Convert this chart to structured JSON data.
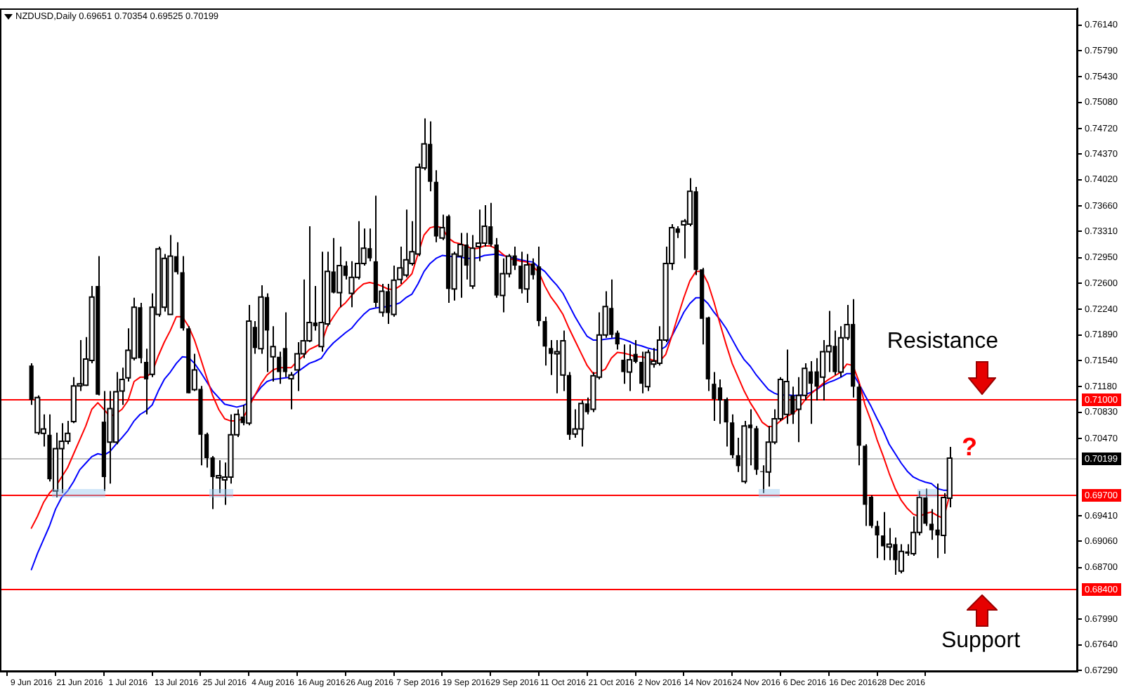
{
  "chart_data": {
    "type": "candlestick",
    "title": "NZDUSD,Daily 0.69651 0.70354 0.69525 0.70199",
    "categories": [
      "9 Jun 2016",
      null,
      null,
      null,
      null,
      null,
      null,
      null,
      "21 Jun 2016",
      null,
      null,
      null,
      null,
      null,
      null,
      null,
      "1 Jul 2016",
      null,
      null,
      null,
      null,
      null,
      null,
      null,
      "13 Jul 2016",
      null,
      null,
      null,
      null,
      null,
      null,
      null,
      "25 Jul 2016",
      null,
      null,
      null,
      null,
      null,
      null,
      null,
      "4 Aug 2016",
      null,
      null,
      null,
      null,
      null,
      null,
      null,
      "16 Aug 2016",
      null,
      null,
      null,
      null,
      null,
      null,
      null,
      "26 Aug 2016",
      null,
      null,
      null,
      null,
      null,
      null,
      null,
      "7 Sep 2016",
      null,
      null,
      null,
      null,
      null,
      null,
      null,
      "19 Sep 2016",
      null,
      null,
      null,
      null,
      null,
      null,
      null,
      "29 Sep 2016",
      null,
      null,
      null,
      null,
      null,
      null,
      null,
      "11 Oct 2016",
      null,
      null,
      null,
      null,
      null,
      null,
      null,
      "21 Oct 2016",
      null,
      null,
      null,
      null,
      null,
      null,
      null,
      "2 Nov 2016",
      null,
      null,
      null,
      null,
      null,
      null,
      null,
      "14 Nov 2016",
      null,
      null,
      null,
      null,
      null,
      null,
      null,
      "24 Nov 2016",
      null,
      null,
      null,
      null,
      null,
      null,
      null,
      "6 Dec 2016",
      null,
      null,
      null,
      null,
      null,
      null,
      null,
      "16 Dec 2016",
      null,
      null,
      null,
      null,
      null,
      null,
      null,
      "28 Dec 2016",
      null,
      null,
      null,
      null,
      null,
      null,
      null,
      null
    ],
    "ohlc": [
      [
        0.7147,
        0.715,
        0.7093,
        0.71
      ],
      [
        0.7055,
        0.7106,
        0.7052,
        0.7103
      ],
      [
        0.7054,
        0.708,
        0.7036,
        0.706
      ],
      [
        0.7052,
        0.708,
        0.6988,
        0.6991
      ],
      [
        0.6975,
        0.7055,
        0.6966,
        0.7033
      ],
      [
        0.7033,
        0.7068,
        0.6972,
        0.7043
      ],
      [
        0.7043,
        0.7071,
        0.7039,
        0.7054
      ],
      [
        0.707,
        0.7131,
        0.7068,
        0.7119
      ],
      [
        0.7119,
        0.7182,
        0.7112,
        0.7122
      ],
      [
        0.712,
        0.7186,
        0.7119,
        0.7156
      ],
      [
        0.7154,
        0.7256,
        0.715,
        0.7241
      ],
      [
        0.7256,
        0.7297,
        0.7106,
        0.7107
      ],
      [
        0.707,
        0.7112,
        0.6975,
        0.6994
      ],
      [
        0.7042,
        0.7112,
        0.6985,
        0.7088
      ],
      [
        0.7042,
        0.7138,
        0.7039,
        0.7111
      ],
      [
        0.7112,
        0.7144,
        0.7093,
        0.7128
      ],
      [
        0.713,
        0.7198,
        0.7125,
        0.7168
      ],
      [
        0.7157,
        0.724,
        0.7154,
        0.7227
      ],
      [
        0.7227,
        0.7233,
        0.715,
        0.7157
      ],
      [
        0.7152,
        0.717,
        0.708,
        0.7128
      ],
      [
        0.7135,
        0.7246,
        0.7131,
        0.7227
      ],
      [
        0.7217,
        0.731,
        0.7214,
        0.7307
      ],
      [
        0.7227,
        0.73,
        0.7221,
        0.7294
      ],
      [
        0.7217,
        0.7326,
        0.7217,
        0.7297
      ],
      [
        0.7297,
        0.7316,
        0.7272,
        0.7275
      ],
      [
        0.7275,
        0.7297,
        0.7195,
        0.7198
      ],
      [
        0.7198,
        0.7201,
        0.7109,
        0.7109
      ],
      [
        0.7114,
        0.7163,
        0.7112,
        0.7141
      ],
      [
        0.7115,
        0.7119,
        0.701,
        0.7052
      ],
      [
        0.7053,
        0.7055,
        0.7007,
        0.702
      ],
      [
        0.7021,
        0.7023,
        0.695,
        0.6994
      ],
      [
        0.6993,
        0.7017,
        0.6972,
        0.6996
      ],
      [
        0.699,
        0.7014,
        0.6956,
        0.6994
      ],
      [
        0.6994,
        0.708,
        0.6985,
        0.7052
      ],
      [
        0.7052,
        0.7087,
        0.7049,
        0.708
      ],
      [
        0.7077,
        0.7093,
        0.7065,
        0.7068
      ],
      [
        0.7068,
        0.723,
        0.7065,
        0.7208
      ],
      [
        0.72,
        0.7208,
        0.7163,
        0.7171
      ],
      [
        0.717,
        0.7257,
        0.7163,
        0.7241
      ],
      [
        0.7241,
        0.7246,
        0.7138,
        0.7195
      ],
      [
        0.7159,
        0.7201,
        0.7125,
        0.7173
      ],
      [
        0.7159,
        0.7166,
        0.7122,
        0.7138
      ],
      [
        0.7171,
        0.722,
        0.7131,
        0.7138
      ],
      [
        0.7129,
        0.7138,
        0.7087,
        0.7134
      ],
      [
        0.7141,
        0.7179,
        0.7112,
        0.7163
      ],
      [
        0.7163,
        0.7265,
        0.7157,
        0.7181
      ],
      [
        0.7181,
        0.7338,
        0.7179,
        0.7206
      ],
      [
        0.7206,
        0.7256,
        0.7195,
        0.7201
      ],
      [
        0.7173,
        0.7303,
        0.7166,
        0.7206
      ],
      [
        0.7204,
        0.7303,
        0.7201,
        0.7276
      ],
      [
        0.7276,
        0.7322,
        0.7246,
        0.7247
      ],
      [
        0.7247,
        0.731,
        0.7227,
        0.7284
      ],
      [
        0.7284,
        0.729,
        0.7265,
        0.727
      ],
      [
        0.7246,
        0.729,
        0.7227,
        0.7268
      ],
      [
        0.7268,
        0.7345,
        0.7265,
        0.7287
      ],
      [
        0.7287,
        0.7335,
        0.7284,
        0.7308
      ],
      [
        0.7308,
        0.7335,
        0.729,
        0.7294
      ],
      [
        0.729,
        0.738,
        0.7227,
        0.7233
      ],
      [
        0.722,
        0.7259,
        0.7214,
        0.7249
      ],
      [
        0.7249,
        0.7259,
        0.7204,
        0.7219
      ],
      [
        0.7217,
        0.7284,
        0.7214,
        0.7264
      ],
      [
        0.7265,
        0.731,
        0.7259,
        0.7281
      ],
      [
        0.7271,
        0.7361,
        0.7268,
        0.7292
      ],
      [
        0.7287,
        0.7345,
        0.7284,
        0.7303
      ],
      [
        0.73,
        0.7424,
        0.7297,
        0.7419
      ],
      [
        0.7418,
        0.7486,
        0.7415,
        0.7451
      ],
      [
        0.7451,
        0.7482,
        0.7386,
        0.7399
      ],
      [
        0.7399,
        0.7415,
        0.7316,
        0.7324
      ],
      [
        0.7322,
        0.7354,
        0.7319,
        0.7336
      ],
      [
        0.7352,
        0.7354,
        0.7233,
        0.7252
      ],
      [
        0.7252,
        0.7303,
        0.7236,
        0.73
      ],
      [
        0.7297,
        0.7329,
        0.724,
        0.7313
      ],
      [
        0.7313,
        0.7329,
        0.7265,
        0.7284
      ],
      [
        0.7256,
        0.7326,
        0.7252,
        0.7308
      ],
      [
        0.731,
        0.7361,
        0.729,
        0.7315
      ],
      [
        0.7315,
        0.7367,
        0.731,
        0.7338
      ],
      [
        0.7338,
        0.737,
        0.731,
        0.7313
      ],
      [
        0.7313,
        0.7322,
        0.724,
        0.7243
      ],
      [
        0.7243,
        0.7294,
        0.722,
        0.7273
      ],
      [
        0.7273,
        0.73,
        0.7268,
        0.7297
      ],
      [
        0.7298,
        0.731,
        0.7278,
        0.7284
      ],
      [
        0.7284,
        0.7303,
        0.7246,
        0.7252
      ],
      [
        0.7252,
        0.73,
        0.7233,
        0.7285
      ],
      [
        0.7287,
        0.7294,
        0.7265,
        0.7271
      ],
      [
        0.7283,
        0.731,
        0.7201,
        0.7208
      ],
      [
        0.7208,
        0.7214,
        0.7147,
        0.7173
      ],
      [
        0.7171,
        0.7182,
        0.7134,
        0.7163
      ],
      [
        0.7163,
        0.7182,
        0.7109,
        0.7166
      ],
      [
        0.7134,
        0.7195,
        0.7112,
        0.7181
      ],
      [
        0.7134,
        0.7138,
        0.7045,
        0.7052
      ],
      [
        0.7053,
        0.7087,
        0.7048,
        0.706
      ],
      [
        0.706,
        0.7099,
        0.7036,
        0.7095
      ],
      [
        0.7095,
        0.7103,
        0.708,
        0.7083
      ],
      [
        0.7087,
        0.7138,
        0.7083,
        0.7133
      ],
      [
        0.7131,
        0.722,
        0.7128,
        0.7189
      ],
      [
        0.7189,
        0.7249,
        0.7185,
        0.7228
      ],
      [
        0.7226,
        0.7265,
        0.7185,
        0.7189
      ],
      [
        0.7192,
        0.7195,
        0.7169,
        0.7176
      ],
      [
        0.7155,
        0.7176,
        0.7122,
        0.7138
      ],
      [
        0.7138,
        0.7176,
        0.7112,
        0.7155
      ],
      [
        0.7163,
        0.7182,
        0.715,
        0.7152
      ],
      [
        0.7152,
        0.7166,
        0.7109,
        0.7122
      ],
      [
        0.7118,
        0.7169,
        0.7112,
        0.7165
      ],
      [
        0.7149,
        0.7171,
        0.7144,
        0.7153
      ],
      [
        0.715,
        0.7201,
        0.7147,
        0.7182
      ],
      [
        0.7182,
        0.731,
        0.7179,
        0.7287
      ],
      [
        0.7287,
        0.7341,
        0.7278,
        0.7336
      ],
      [
        0.7335,
        0.7338,
        0.7322,
        0.7329
      ],
      [
        0.734,
        0.7348,
        0.7294,
        0.7345
      ],
      [
        0.7341,
        0.7404,
        0.7338,
        0.7386
      ],
      [
        0.7386,
        0.7392,
        0.7271,
        0.7278
      ],
      [
        0.7279,
        0.7281,
        0.7176,
        0.7211
      ],
      [
        0.7213,
        0.7214,
        0.7112,
        0.7128
      ],
      [
        0.7122,
        0.7138,
        0.7071,
        0.7101
      ],
      [
        0.7117,
        0.7128,
        0.7067,
        0.7099
      ],
      [
        0.7101,
        0.7103,
        0.7036,
        0.7069
      ],
      [
        0.7069,
        0.708,
        0.702,
        0.7024
      ],
      [
        0.7024,
        0.7048,
        0.7001,
        0.7009
      ],
      [
        0.6988,
        0.7071,
        0.6985,
        0.7064
      ],
      [
        0.7066,
        0.7087,
        0.701,
        0.7061
      ],
      [
        0.7061,
        0.7064,
        0.6997,
        0.7004
      ],
      [
        0.7002,
        0.701,
        0.6972,
        0.7001
      ],
      [
        0.7001,
        0.7064,
        0.6981,
        0.7042
      ],
      [
        0.7042,
        0.7087,
        0.7039,
        0.7074
      ],
      [
        0.7074,
        0.7131,
        0.7071,
        0.7128
      ],
      [
        0.708,
        0.7169,
        0.7067,
        0.7125
      ],
      [
        0.7106,
        0.7118,
        0.7067,
        0.708
      ],
      [
        0.7087,
        0.7131,
        0.7042,
        0.7106
      ],
      [
        0.7106,
        0.715,
        0.7099,
        0.7143
      ],
      [
        0.7139,
        0.7153,
        0.7067,
        0.7122
      ],
      [
        0.7139,
        0.7157,
        0.7099,
        0.7118
      ],
      [
        0.7131,
        0.7182,
        0.7099,
        0.7166
      ],
      [
        0.7166,
        0.7222,
        0.7138,
        0.7174
      ],
      [
        0.7174,
        0.7195,
        0.7134,
        0.7138
      ],
      [
        0.7138,
        0.7201,
        0.7131,
        0.7185
      ],
      [
        0.7185,
        0.723,
        0.7182,
        0.7203
      ],
      [
        0.7204,
        0.7238,
        0.7103,
        0.7118
      ],
      [
        0.7118,
        0.7122,
        0.701,
        0.7037
      ],
      [
        0.7037,
        0.7039,
        0.6927,
        0.6956
      ],
      [
        0.6967,
        0.6969,
        0.6924,
        0.6927
      ],
      [
        0.6927,
        0.6934,
        0.6883,
        0.6914
      ],
      [
        0.6914,
        0.6946,
        0.688,
        0.6899
      ],
      [
        0.6898,
        0.6924,
        0.688,
        0.6902
      ],
      [
        0.6902,
        0.6911,
        0.686,
        0.688
      ],
      [
        0.6865,
        0.6902,
        0.6862,
        0.6892
      ],
      [
        0.6892,
        0.6902,
        0.6886,
        0.6889
      ],
      [
        0.6889,
        0.694,
        0.6886,
        0.6918
      ],
      [
        0.6918,
        0.6975,
        0.6914,
        0.6966
      ],
      [
        0.6966,
        0.6978,
        0.6927,
        0.693
      ],
      [
        0.693,
        0.695,
        0.6908,
        0.6921
      ],
      [
        0.6922,
        0.6985,
        0.6883,
        0.6914
      ],
      [
        0.6914,
        0.6972,
        0.6889,
        0.6966
      ],
      [
        0.69651,
        0.70354,
        0.69525,
        0.70199
      ]
    ],
    "series": [
      {
        "type": "line",
        "color": "#ff0000",
        "values": [
          0.6924,
          0.694,
          0.6959,
          0.6972,
          0.6981,
          0.6994,
          0.7007,
          0.7026,
          0.7045,
          0.7064,
          0.7087,
          0.7096,
          0.7087,
          0.7077,
          0.7081,
          0.7087,
          0.7099,
          0.7125,
          0.7131,
          0.7131,
          0.7138,
          0.716,
          0.7179,
          0.7195,
          0.7214,
          0.7214,
          0.7201,
          0.7182,
          0.7157,
          0.7131,
          0.7106,
          0.7087,
          0.7074,
          0.7071,
          0.7071,
          0.7074,
          0.709,
          0.7106,
          0.7122,
          0.7134,
          0.7141,
          0.7144,
          0.7144,
          0.7144,
          0.7153,
          0.716,
          0.7169,
          0.7173,
          0.7177,
          0.7201,
          0.7214,
          0.7226,
          0.7233,
          0.7243,
          0.7252,
          0.7259,
          0.7261,
          0.7259,
          0.7256,
          0.7252,
          0.7251,
          0.7256,
          0.7264,
          0.7273,
          0.73,
          0.7326,
          0.7336,
          0.7338,
          0.7336,
          0.7322,
          0.7316,
          0.7314,
          0.7311,
          0.7307,
          0.7308,
          0.7311,
          0.7311,
          0.7307,
          0.73,
          0.7294,
          0.7292,
          0.729,
          0.7289,
          0.7283,
          0.7275,
          0.7256,
          0.7241,
          0.723,
          0.7217,
          0.7198,
          0.7181,
          0.7164,
          0.7147,
          0.7136,
          0.7138,
          0.7142,
          0.7157,
          0.7165,
          0.7164,
          0.7162,
          0.7159,
          0.7159,
          0.7157,
          0.7154,
          0.7153,
          0.7162,
          0.7187,
          0.7214,
          0.724,
          0.7263,
          0.7276,
          0.7276,
          0.726,
          0.7234,
          0.7204,
          0.7176,
          0.715,
          0.7131,
          0.7112,
          0.7096,
          0.7083,
          0.7069,
          0.7063,
          0.7064,
          0.7071,
          0.7077,
          0.7081,
          0.7088,
          0.7099,
          0.7108,
          0.7115,
          0.7122,
          0.7128,
          0.7133,
          0.7138,
          0.7149,
          0.7147,
          0.7125,
          0.7093,
          0.7071,
          0.7045,
          0.7023,
          0.6999,
          0.6978,
          0.6962,
          0.6951,
          0.6943,
          0.694,
          0.6944,
          0.6946,
          0.6941,
          0.6937,
          0.6969
        ]
      },
      {
        "type": "line",
        "color": "#0000ff",
        "values": [
          0.6867,
          0.6889,
          0.6908,
          0.6927,
          0.695,
          0.6966,
          0.6975,
          0.6988,
          0.7004,
          0.7013,
          0.7022,
          0.7026,
          0.7024,
          0.7029,
          0.7039,
          0.7048,
          0.7058,
          0.7071,
          0.708,
          0.7085,
          0.7093,
          0.7112,
          0.7128,
          0.7138,
          0.715,
          0.7159,
          0.7158,
          0.715,
          0.7138,
          0.7125,
          0.7112,
          0.7103,
          0.7094,
          0.7092,
          0.709,
          0.7092,
          0.7096,
          0.7106,
          0.7117,
          0.7125,
          0.7128,
          0.7129,
          0.713,
          0.7131,
          0.7138,
          0.7144,
          0.715,
          0.7153,
          0.7157,
          0.7169,
          0.7178,
          0.7185,
          0.7192,
          0.7198,
          0.7208,
          0.7217,
          0.7224,
          0.7226,
          0.7227,
          0.7228,
          0.723,
          0.7233,
          0.724,
          0.7245,
          0.7259,
          0.7276,
          0.7287,
          0.7294,
          0.7298,
          0.7297,
          0.7296,
          0.7296,
          0.7294,
          0.7294,
          0.7295,
          0.7298,
          0.7299,
          0.73,
          0.7298,
          0.7296,
          0.7294,
          0.7292,
          0.729,
          0.7289,
          0.7282,
          0.7276,
          0.7266,
          0.7257,
          0.7246,
          0.723,
          0.7214,
          0.72,
          0.7187,
          0.7182,
          0.7182,
          0.7183,
          0.7184,
          0.7185,
          0.7183,
          0.718,
          0.7176,
          0.7174,
          0.7171,
          0.7169,
          0.7168,
          0.7173,
          0.7187,
          0.7203,
          0.722,
          0.7232,
          0.724,
          0.724,
          0.7232,
          0.722,
          0.721,
          0.7198,
          0.7183,
          0.7168,
          0.7155,
          0.7146,
          0.7134,
          0.7124,
          0.7114,
          0.7109,
          0.7106,
          0.7107,
          0.7106,
          0.7106,
          0.7107,
          0.711,
          0.7114,
          0.712,
          0.7124,
          0.7127,
          0.7131,
          0.7136,
          0.7136,
          0.7122,
          0.7106,
          0.7091,
          0.7074,
          0.7058,
          0.7039,
          0.7026,
          0.7013,
          0.7002,
          0.6994,
          0.699,
          0.6987,
          0.6985,
          0.6978,
          0.6976,
          0.6976
        ]
      }
    ],
    "ylim": [
      0.6727,
      0.7637
    ],
    "yticks": [
      {
        "value": 0.7614,
        "label": "0.76140"
      },
      {
        "value": 0.7579,
        "label": "0.75790"
      },
      {
        "value": 0.7543,
        "label": "0.75430"
      },
      {
        "value": 0.7508,
        "label": "0.75080"
      },
      {
        "value": 0.7472,
        "label": "0.74720"
      },
      {
        "value": 0.7437,
        "label": "0.74370"
      },
      {
        "value": 0.7402,
        "label": "0.74020"
      },
      {
        "value": 0.7366,
        "label": "0.73660"
      },
      {
        "value": 0.7331,
        "label": "0.73310"
      },
      {
        "value": 0.7295,
        "label": "0.72950"
      },
      {
        "value": 0.726,
        "label": "0.72600"
      },
      {
        "value": 0.7224,
        "label": "0.72240"
      },
      {
        "value": 0.7189,
        "label": "0.71890"
      },
      {
        "value": 0.7154,
        "label": "0.71540"
      },
      {
        "value": 0.7118,
        "label": "0.71180"
      },
      {
        "value": 0.7083,
        "label": "0.70830"
      },
      {
        "value": 0.7047,
        "label": "0.70470"
      },
      {
        "value": 0.6941,
        "label": "0.69410"
      },
      {
        "value": 0.6906,
        "label": "0.69060"
      },
      {
        "value": 0.687,
        "label": "0.68700"
      },
      {
        "value": 0.6799,
        "label": "0.67990"
      },
      {
        "value": 0.6764,
        "label": "0.67640"
      },
      {
        "value": 0.6729,
        "label": "0.67290"
      }
    ],
    "ref_lines": [
      {
        "axis": "y",
        "value": 0.71,
        "label": "0.71000",
        "color": "#ff0000"
      },
      {
        "axis": "y",
        "value": 0.70199,
        "label": "0.70199",
        "color": "#c0c0c0"
      },
      {
        "axis": "y",
        "value": 0.697,
        "label": "0.69700",
        "color": "#ff0000"
      },
      {
        "axis": "y",
        "value": 0.684,
        "label": "0.68400",
        "color": "#ff0000"
      }
    ],
    "annotations": [
      "Resistance",
      "?",
      "Support"
    ]
  }
}
